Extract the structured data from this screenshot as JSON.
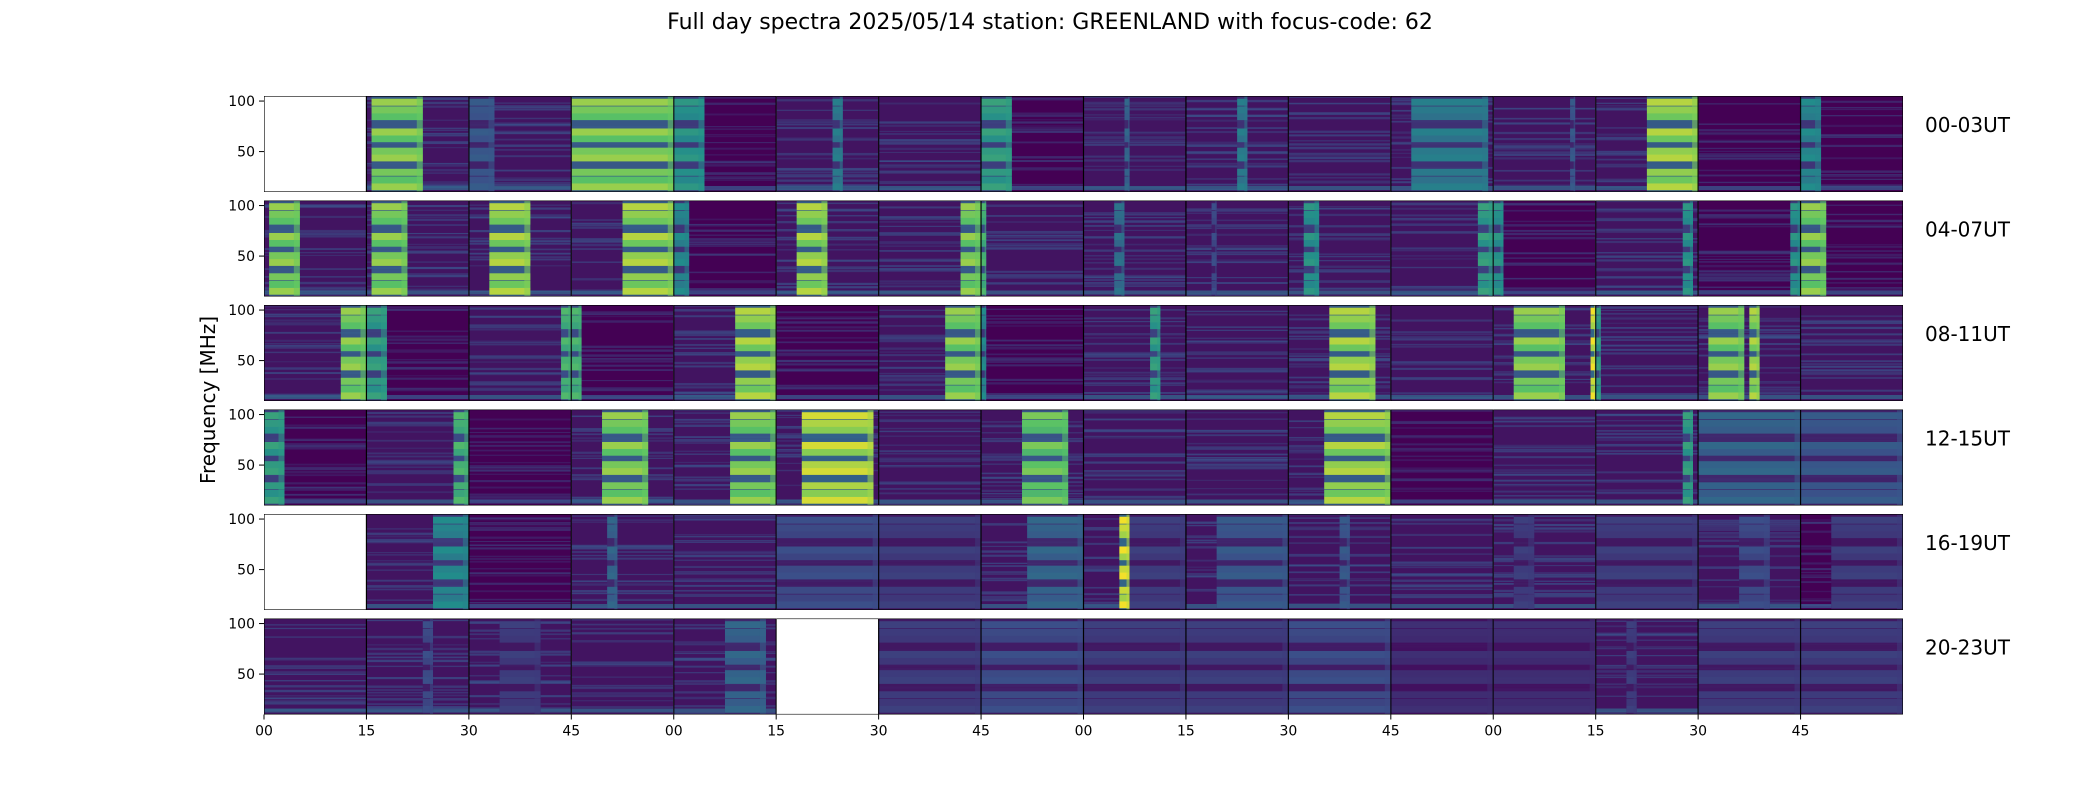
{
  "title": "Full day spectra 2025/05/14 station: GREENLAND with focus-code: 62",
  "chart_data": {
    "type": "heatmap",
    "title": "Full day spectra 2025/05/14 station: GREENLAND with focus-code: 62",
    "ylabel": "Frequency [MHz]",
    "xlabel": "",
    "y_ticks": [
      "50",
      "100"
    ],
    "ylim": [
      10,
      105
    ],
    "x_ticks": [
      "00",
      "15",
      "30",
      "45",
      "00",
      "15",
      "30",
      "45",
      "00",
      "15",
      "30",
      "45",
      "00",
      "15",
      "30",
      "45"
    ],
    "colormap": "viridis",
    "colors": {
      "background": "#440154",
      "mid": "#21918c",
      "high": "#fde725"
    },
    "rows": [
      {
        "label": "00-03UT",
        "panels": [
          {
            "missing": true
          },
          {
            "bursts": [
              {
                "x0": 0.05,
                "x1": 0.55,
                "i": 0.85
              }
            ]
          },
          {
            "bursts": [
              {
                "x0": 0.0,
                "x1": 0.25,
                "i": 0.3
              }
            ]
          },
          {
            "bursts": [
              {
                "x0": 0.0,
                "x1": 1.0,
                "i": 0.85
              }
            ]
          },
          {
            "bursts": [
              {
                "x0": 0.0,
                "x1": 0.3,
                "i": 0.55
              }
            ],
            "dark": true
          },
          {
            "bursts": [
              {
                "x0": 0.55,
                "x1": 0.65,
                "i": 0.45
              }
            ]
          },
          {
            "bursts": []
          },
          {
            "bursts": [
              {
                "x0": 0.0,
                "x1": 0.3,
                "i": 0.6
              }
            ],
            "dark": true
          },
          {
            "bursts": [
              {
                "x0": 0.4,
                "x1": 0.45,
                "i": 0.35
              }
            ]
          },
          {
            "bursts": [
              {
                "x0": 0.5,
                "x1": 0.6,
                "i": 0.45
              }
            ]
          },
          {
            "bursts": []
          },
          {
            "bursts": [
              {
                "x0": 0.2,
                "x1": 0.95,
                "i": 0.45
              }
            ]
          },
          {
            "bursts": [
              {
                "x0": 0.75,
                "x1": 0.8,
                "i": 0.3
              }
            ]
          },
          {
            "bursts": [
              {
                "x0": 0.5,
                "x1": 1.0,
                "i": 0.9
              }
            ]
          },
          {
            "bursts": [],
            "dark": true
          },
          {
            "bursts": [
              {
                "x0": 0.0,
                "x1": 0.2,
                "i": 0.5
              }
            ],
            "dark": true
          }
        ]
      },
      {
        "label": "04-07UT",
        "panels": [
          {
            "bursts": [
              {
                "x0": 0.05,
                "x1": 0.35,
                "i": 0.85
              }
            ]
          },
          {
            "bursts": [
              {
                "x0": 0.05,
                "x1": 0.4,
                "i": 0.85
              }
            ]
          },
          {
            "bursts": [
              {
                "x0": 0.2,
                "x1": 0.6,
                "i": 0.9
              }
            ]
          },
          {
            "bursts": [
              {
                "x0": 0.5,
                "x1": 1.0,
                "i": 0.9
              }
            ]
          },
          {
            "bursts": [
              {
                "x0": 0.0,
                "x1": 0.15,
                "i": 0.5
              }
            ],
            "dark": true
          },
          {
            "bursts": [
              {
                "x0": 0.2,
                "x1": 0.5,
                "i": 0.9
              }
            ]
          },
          {
            "bursts": [
              {
                "x0": 0.8,
                "x1": 1.0,
                "i": 0.85
              }
            ]
          },
          {
            "bursts": [
              {
                "x0": 0.0,
                "x1": 0.05,
                "i": 0.7
              }
            ]
          },
          {
            "bursts": [
              {
                "x0": 0.3,
                "x1": 0.4,
                "i": 0.4
              }
            ]
          },
          {
            "bursts": [
              {
                "x0": 0.25,
                "x1": 0.3,
                "i": 0.25
              }
            ]
          },
          {
            "bursts": [
              {
                "x0": 0.15,
                "x1": 0.3,
                "i": 0.55
              }
            ]
          },
          {
            "bursts": [
              {
                "x0": 0.85,
                "x1": 1.0,
                "i": 0.6
              }
            ]
          },
          {
            "bursts": [
              {
                "x0": 0.0,
                "x1": 0.1,
                "i": 0.55
              }
            ],
            "dark": true
          },
          {
            "bursts": [
              {
                "x0": 0.85,
                "x1": 0.95,
                "i": 0.55
              }
            ]
          },
          {
            "bursts": [
              {
                "x0": 0.9,
                "x1": 1.0,
                "i": 0.55
              }
            ],
            "dark": true
          },
          {
            "bursts": [
              {
                "x0": 0.0,
                "x1": 0.25,
                "i": 0.85
              }
            ],
            "dark": true
          }
        ]
      },
      {
        "label": "08-11UT",
        "panels": [
          {
            "bursts": [
              {
                "x0": 0.75,
                "x1": 1.0,
                "i": 0.85
              }
            ]
          },
          {
            "bursts": [
              {
                "x0": 0.0,
                "x1": 0.2,
                "i": 0.6
              }
            ],
            "dark": true
          },
          {
            "bursts": [
              {
                "x0": 0.9,
                "x1": 1.0,
                "i": 0.7
              }
            ]
          },
          {
            "bursts": [
              {
                "x0": 0.0,
                "x1": 0.1,
                "i": 0.7
              }
            ],
            "dark": true
          },
          {
            "bursts": [
              {
                "x0": 0.6,
                "x1": 1.0,
                "i": 0.9
              }
            ]
          },
          {
            "bursts": [],
            "dark": true
          },
          {
            "bursts": [
              {
                "x0": 0.65,
                "x1": 1.0,
                "i": 0.85
              }
            ]
          },
          {
            "bursts": [
              {
                "x0": 0.0,
                "x1": 0.05,
                "i": 0.5
              }
            ],
            "dark": true
          },
          {
            "bursts": [
              {
                "x0": 0.65,
                "x1": 0.75,
                "i": 0.6
              }
            ]
          },
          {
            "bursts": []
          },
          {
            "bursts": [
              {
                "x0": 0.4,
                "x1": 0.85,
                "i": 0.9
              }
            ]
          },
          {
            "bursts": []
          },
          {
            "bursts": [
              {
                "x0": 0.2,
                "x1": 0.7,
                "i": 0.85
              },
              {
                "x0": 0.95,
                "x1": 1.0,
                "i": 1.0
              }
            ]
          },
          {
            "bursts": [
              {
                "x0": 0.0,
                "x1": 0.05,
                "i": 0.6
              }
            ]
          },
          {
            "bursts": [
              {
                "x0": 0.1,
                "x1": 0.45,
                "i": 0.85
              },
              {
                "x0": 0.5,
                "x1": 0.6,
                "i": 0.9
              }
            ]
          },
          {
            "bursts": []
          }
        ]
      },
      {
        "label": "12-15UT",
        "panels": [
          {
            "bursts": [
              {
                "x0": 0.0,
                "x1": 0.2,
                "i": 0.6
              }
            ],
            "dark": true
          },
          {
            "bursts": [
              {
                "x0": 0.85,
                "x1": 1.0,
                "i": 0.7
              }
            ]
          },
          {
            "bursts": [],
            "dark": true
          },
          {
            "bursts": [
              {
                "x0": 0.3,
                "x1": 0.75,
                "i": 0.85
              }
            ]
          },
          {
            "bursts": [
              {
                "x0": 0.55,
                "x1": 1.0,
                "i": 0.85
              }
            ]
          },
          {
            "bursts": [
              {
                "x0": 0.25,
                "x1": 0.95,
                "i": 0.95
              }
            ]
          },
          {
            "bursts": []
          },
          {
            "bursts": [
              {
                "x0": 0.4,
                "x1": 0.85,
                "i": 0.8
              }
            ]
          },
          {
            "bursts": []
          },
          {
            "bursts": []
          },
          {
            "bursts": [
              {
                "x0": 0.35,
                "x1": 1.0,
                "i": 0.9
              }
            ]
          },
          {
            "bursts": [],
            "dark": true
          },
          {
            "bursts": []
          },
          {
            "bursts": [
              {
                "x0": 0.85,
                "x1": 0.95,
                "i": 0.6
              }
            ]
          },
          {
            "bursts": [
              {
                "x0": 0.0,
                "x1": 1.0,
                "i": 0.35
              }
            ]
          },
          {
            "bursts": [
              {
                "x0": 0.0,
                "x1": 1.0,
                "i": 0.3
              }
            ]
          }
        ]
      },
      {
        "label": "16-19UT",
        "panels": [
          {
            "missing": true
          },
          {
            "bursts": [
              {
                "x0": 0.65,
                "x1": 1.0,
                "i": 0.5
              }
            ]
          },
          {
            "bursts": [],
            "dark": true
          },
          {
            "bursts": [
              {
                "x0": 0.35,
                "x1": 0.45,
                "i": 0.35
              }
            ]
          },
          {
            "bursts": []
          },
          {
            "bursts": [
              {
                "x0": 0.0,
                "x1": 1.0,
                "i": 0.25
              }
            ]
          },
          {
            "bursts": [
              {
                "x0": 0.0,
                "x1": 1.0,
                "i": 0.2
              }
            ]
          },
          {
            "bursts": [
              {
                "x0": 0.45,
                "x1": 1.0,
                "i": 0.35
              }
            ]
          },
          {
            "bursts": [
              {
                "x0": 0.35,
                "x1": 0.45,
                "i": 1.0
              },
              {
                "x0": 0.45,
                "x1": 1.0,
                "i": 0.2
              }
            ]
          },
          {
            "bursts": [
              {
                "x0": 0.3,
                "x1": 1.0,
                "i": 0.3
              }
            ]
          },
          {
            "bursts": [
              {
                "x0": 0.5,
                "x1": 0.6,
                "i": 0.3
              }
            ]
          },
          {
            "bursts": []
          },
          {
            "bursts": [
              {
                "x0": 0.2,
                "x1": 0.4,
                "i": 0.2
              }
            ]
          },
          {
            "bursts": [
              {
                "x0": 0.0,
                "x1": 1.0,
                "i": 0.2
              }
            ]
          },
          {
            "bursts": [
              {
                "x0": 0.4,
                "x1": 0.7,
                "i": 0.25
              }
            ]
          },
          {
            "bursts": [
              {
                "x0": 0.3,
                "x1": 1.0,
                "i": 0.2
              }
            ],
            "dark": true
          }
        ]
      },
      {
        "label": "20-23UT",
        "panels": [
          {
            "bursts": []
          },
          {
            "bursts": [
              {
                "x0": 0.55,
                "x1": 0.65,
                "i": 0.25
              }
            ]
          },
          {
            "bursts": [
              {
                "x0": 0.3,
                "x1": 0.7,
                "i": 0.2
              }
            ]
          },
          {
            "bursts": []
          },
          {
            "bursts": [
              {
                "x0": 0.5,
                "x1": 0.9,
                "i": 0.35
              }
            ]
          },
          {
            "missing": true
          },
          {
            "bursts": [
              {
                "x0": 0.0,
                "x1": 1.0,
                "i": 0.2
              }
            ]
          },
          {
            "bursts": [
              {
                "x0": 0.0,
                "x1": 1.0,
                "i": 0.25
              }
            ]
          },
          {
            "bursts": [
              {
                "x0": 0.0,
                "x1": 1.0,
                "i": 0.2
              }
            ]
          },
          {
            "bursts": [
              {
                "x0": 0.0,
                "x1": 1.0,
                "i": 0.2
              }
            ]
          },
          {
            "bursts": [
              {
                "x0": 0.0,
                "x1": 1.0,
                "i": 0.25
              }
            ]
          },
          {
            "bursts": [
              {
                "x0": 0.0,
                "x1": 1.0,
                "i": 0.15
              }
            ],
            "dark": true
          },
          {
            "bursts": [
              {
                "x0": 0.0,
                "x1": 1.0,
                "i": 0.15
              }
            ]
          },
          {
            "bursts": [
              {
                "x0": 0.3,
                "x1": 0.4,
                "i": 0.2
              }
            ]
          },
          {
            "bursts": [
              {
                "x0": 0.0,
                "x1": 1.0,
                "i": 0.2
              }
            ]
          },
          {
            "bursts": [
              {
                "x0": 0.0,
                "x1": 1.0,
                "i": 0.2
              }
            ]
          }
        ]
      }
    ]
  }
}
